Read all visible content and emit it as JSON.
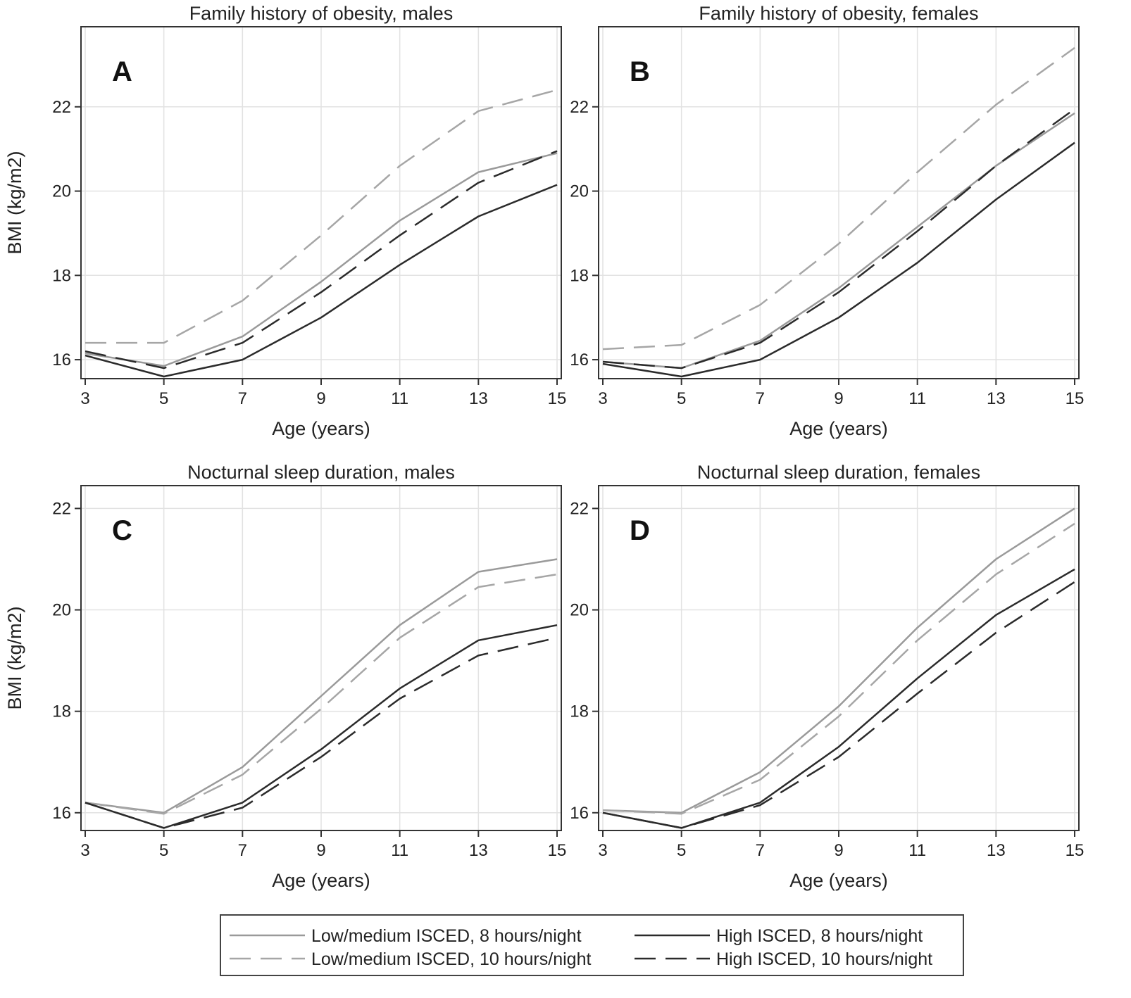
{
  "series_styles": [
    {
      "color": "#9a9a9a",
      "dash": ""
    },
    {
      "color": "#a6a6a6",
      "dash": "30 14"
    },
    {
      "color": "#2b2b2b",
      "dash": ""
    },
    {
      "color": "#2b2b2b",
      "dash": "30 14"
    }
  ],
  "legend": {
    "items": [
      "Low/medium ISCED, 8 hours/night",
      "High ISCED, 8 hours/night",
      "Low/medium ISCED, 10 hours/night",
      "High ISCED, 10 hours/night"
    ]
  },
  "chart_data": [
    {
      "type": "line",
      "panel": "A",
      "title": "Family history of obesity, males",
      "xlabel": "Age (years)",
      "ylabel": "BMI (kg/m2)",
      "x": [
        3,
        5,
        7,
        9,
        11,
        13,
        15
      ],
      "xticks": [
        3,
        5,
        7,
        9,
        11,
        13,
        15
      ],
      "yticks": [
        16,
        18,
        20,
        22
      ],
      "xlim": [
        3,
        15
      ],
      "ylim": [
        15.55,
        23.9
      ],
      "grid": true,
      "series": [
        {
          "name": "Low/medium ISCED, 8 hours/night",
          "values": [
            16.15,
            15.85,
            16.55,
            17.85,
            19.3,
            20.45,
            20.9
          ]
        },
        {
          "name": "Low/medium ISCED, 10 hours/night",
          "values": [
            16.4,
            16.4,
            17.4,
            18.95,
            20.6,
            21.9,
            22.4
          ]
        },
        {
          "name": "High ISCED, 8 hours/night",
          "values": [
            16.1,
            15.6,
            16.0,
            17.0,
            18.25,
            19.4,
            20.15
          ]
        },
        {
          "name": "High ISCED, 10 hours/night",
          "values": [
            16.2,
            15.8,
            16.4,
            17.6,
            18.95,
            20.2,
            20.95
          ]
        }
      ]
    },
    {
      "type": "line",
      "panel": "B",
      "title": "Family history of obesity, females",
      "xlabel": "Age (years)",
      "ylabel": "",
      "x": [
        3,
        5,
        7,
        9,
        11,
        13,
        15
      ],
      "xticks": [
        3,
        5,
        7,
        9,
        11,
        13,
        15
      ],
      "yticks": [
        16,
        18,
        20,
        22
      ],
      "xlim": [
        3,
        15
      ],
      "ylim": [
        15.55,
        23.9
      ],
      "grid": true,
      "series": [
        {
          "name": "Low/medium ISCED, 8 hours/night",
          "values": [
            15.95,
            15.8,
            16.45,
            17.7,
            19.15,
            20.6,
            21.85
          ]
        },
        {
          "name": "Low/medium ISCED, 10 hours/night",
          "values": [
            16.25,
            16.35,
            17.3,
            18.75,
            20.45,
            22.05,
            23.4
          ]
        },
        {
          "name": "High ISCED, 8 hours/night",
          "values": [
            15.9,
            15.6,
            16.0,
            17.0,
            18.3,
            19.8,
            21.15
          ]
        },
        {
          "name": "High ISCED, 10 hours/night",
          "values": [
            15.95,
            15.8,
            16.4,
            17.6,
            19.05,
            20.6,
            21.95
          ]
        }
      ]
    },
    {
      "type": "line",
      "panel": "C",
      "title": "Nocturnal sleep duration, males",
      "xlabel": "Age (years)",
      "ylabel": "BMI (kg/m2)",
      "x": [
        3,
        5,
        7,
        9,
        11,
        13,
        15
      ],
      "xticks": [
        3,
        5,
        7,
        9,
        11,
        13,
        15
      ],
      "yticks": [
        16,
        18,
        20,
        22
      ],
      "xlim": [
        3,
        15
      ],
      "ylim": [
        15.65,
        22.45
      ],
      "grid": true,
      "series": [
        {
          "name": "Low/medium ISCED, 8 hours/night",
          "values": [
            16.2,
            16.0,
            16.9,
            18.3,
            19.7,
            20.75,
            21.0
          ]
        },
        {
          "name": "Low/medium ISCED, 10 hours/night",
          "values": [
            16.2,
            15.98,
            16.75,
            18.05,
            19.45,
            20.45,
            20.7
          ]
        },
        {
          "name": "High ISCED, 8 hours/night",
          "values": [
            16.2,
            15.7,
            16.2,
            17.25,
            18.45,
            19.4,
            19.7
          ]
        },
        {
          "name": "High ISCED, 10 hours/night",
          "values": [
            16.2,
            15.7,
            16.1,
            17.1,
            18.25,
            19.1,
            19.45
          ]
        }
      ]
    },
    {
      "type": "line",
      "panel": "D",
      "title": "Nocturnal sleep duration, females",
      "xlabel": "Age (years)",
      "ylabel": "",
      "x": [
        3,
        5,
        7,
        9,
        11,
        13,
        15
      ],
      "xticks": [
        3,
        5,
        7,
        9,
        11,
        13,
        15
      ],
      "yticks": [
        16,
        18,
        20,
        22
      ],
      "xlim": [
        3,
        15
      ],
      "ylim": [
        15.65,
        22.45
      ],
      "grid": true,
      "series": [
        {
          "name": "Low/medium ISCED, 8 hours/night",
          "values": [
            16.05,
            16.0,
            16.8,
            18.1,
            19.65,
            21.0,
            22.0
          ]
        },
        {
          "name": "Low/medium ISCED, 10 hours/night",
          "values": [
            16.05,
            15.98,
            16.65,
            17.9,
            19.4,
            20.7,
            21.7
          ]
        },
        {
          "name": "High ISCED, 8 hours/night",
          "values": [
            16.0,
            15.7,
            16.2,
            17.3,
            18.65,
            19.9,
            20.8
          ]
        },
        {
          "name": "High ISCED, 10 hours/night",
          "values": [
            16.0,
            15.7,
            16.15,
            17.1,
            18.35,
            19.55,
            20.55
          ]
        }
      ]
    }
  ]
}
